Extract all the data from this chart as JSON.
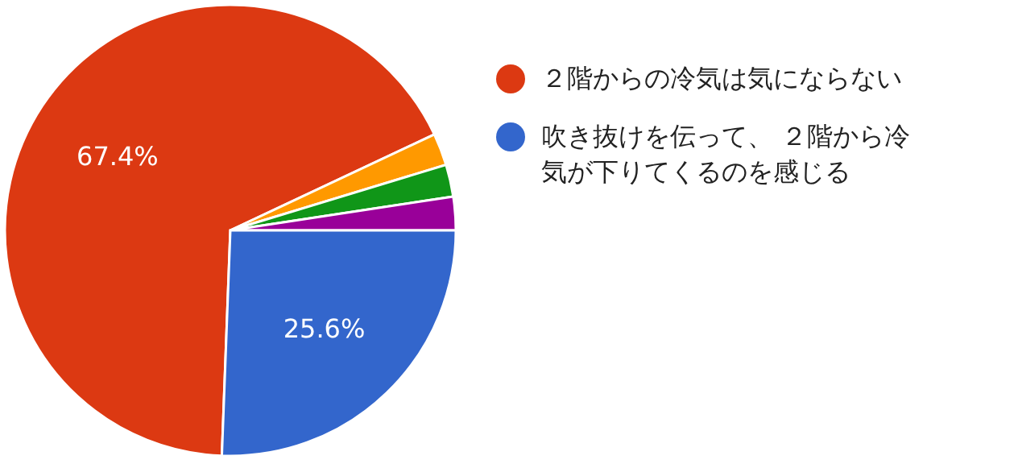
{
  "chart_data": {
    "type": "pie",
    "categories": [
      "２階からの冷気は気にならない",
      null,
      null,
      null,
      "吹き抜けを伝って、 ２階から冷気が下りてくるのを感じる"
    ],
    "values": [
      67.4,
      2.3,
      2.3,
      2.4,
      25.6
    ],
    "colors": [
      "#dc3912",
      "#ff9900",
      "#109618",
      "#990099",
      "#3366cc"
    ],
    "value_labels": [
      "67.4%",
      null,
      null,
      null,
      "25.6%"
    ],
    "legend": "right"
  }
}
